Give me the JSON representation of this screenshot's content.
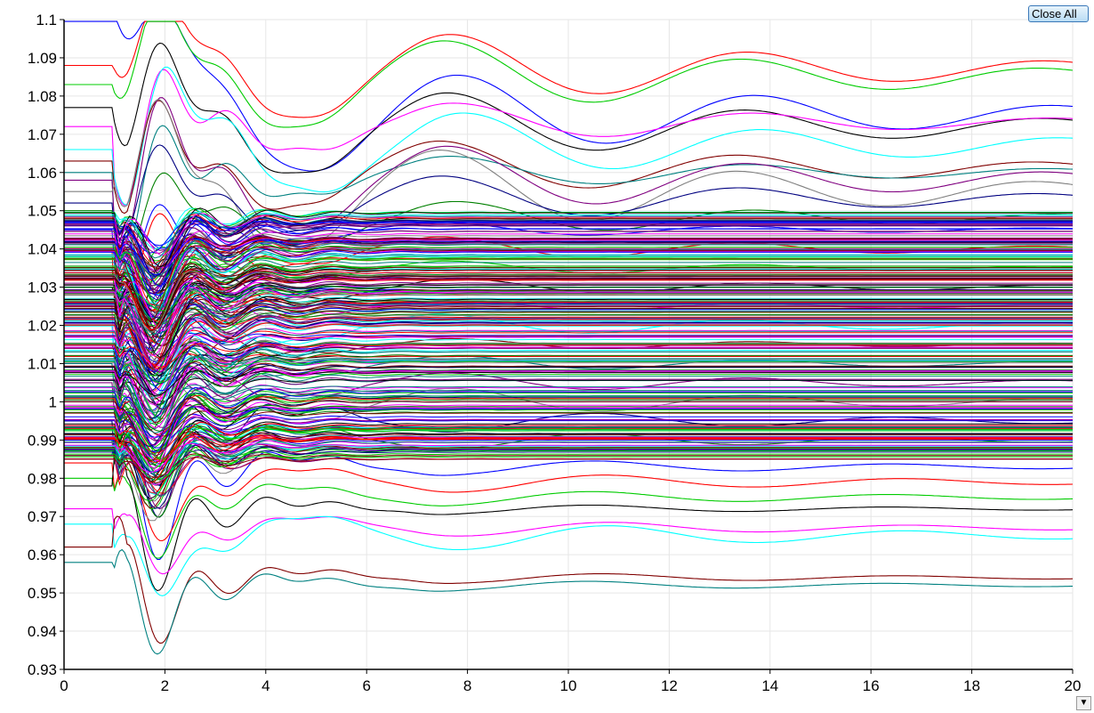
{
  "toolbar": {
    "close_all_label": "Close All",
    "scroll_icon": "chevron-down-icon"
  },
  "chart_data": {
    "type": "line",
    "title": "",
    "xlabel": "",
    "ylabel": "",
    "xlim": [
      0,
      20
    ],
    "ylim": [
      0.93,
      1.1
    ],
    "x_ticks": [
      "0",
      "2",
      "4",
      "6",
      "8",
      "10",
      "12",
      "14",
      "16",
      "18",
      "20"
    ],
    "y_ticks": [
      "0.93",
      "0.94",
      "0.95",
      "0.96",
      "0.97",
      "0.98",
      "0.99",
      "1",
      "1.01",
      "1.02",
      "1.03",
      "1.04",
      "1.05",
      "1.06",
      "1.07",
      "1.08",
      "1.09",
      "1.1"
    ],
    "grid": true,
    "legend": "none",
    "disturbance_time": 1.0,
    "series_colors": [
      "#0000ff",
      "#ff0000",
      "#00cc00",
      "#000000",
      "#ff00ff",
      "#00ffff",
      "#800000",
      "#008080",
      "#800080",
      "#808080",
      "#000080",
      "#008000"
    ],
    "series": [
      {
        "initial": 1.1,
        "final": 1.075
      },
      {
        "initial": 1.088,
        "final": 1.087
      },
      {
        "initial": 1.083,
        "final": 1.085
      },
      {
        "initial": 1.077,
        "final": 1.072
      },
      {
        "initial": 1.072,
        "final": 1.073
      },
      {
        "initial": 1.066,
        "final": 1.067
      },
      {
        "initial": 1.063,
        "final": 1.061
      },
      {
        "initial": 1.06,
        "final": 1.06
      },
      {
        "initial": 1.058,
        "final": 1.058
      },
      {
        "initial": 1.055,
        "final": 1.055
      },
      {
        "initial": 1.052,
        "final": 1.053
      },
      {
        "initial": 1.05,
        "final": 1.048
      },
      {
        "initial": 1.045,
        "final": 1.045
      },
      {
        "initial": 1.04,
        "final": 1.04
      },
      {
        "initial": 1.035,
        "final": 1.035
      },
      {
        "initial": 1.03,
        "final": 1.03
      },
      {
        "initial": 1.025,
        "final": 1.025
      },
      {
        "initial": 1.02,
        "final": 1.02
      },
      {
        "initial": 1.015,
        "final": 1.015
      },
      {
        "initial": 1.01,
        "final": 1.01
      },
      {
        "initial": 1.005,
        "final": 1.005
      },
      {
        "initial": 1.0,
        "final": 1.0
      },
      {
        "initial": 0.995,
        "final": 0.995
      },
      {
        "initial": 0.99,
        "final": 0.99
      },
      {
        "initial": 0.986,
        "final": 0.983
      },
      {
        "initial": 0.984,
        "final": 0.979
      },
      {
        "initial": 0.98,
        "final": 0.975
      },
      {
        "initial": 0.978,
        "final": 0.972
      },
      {
        "initial": 0.972,
        "final": 0.967
      },
      {
        "initial": 0.968,
        "final": 0.965
      },
      {
        "initial": 0.962,
        "final": 0.954
      },
      {
        "initial": 0.958,
        "final": 0.952
      }
    ]
  }
}
